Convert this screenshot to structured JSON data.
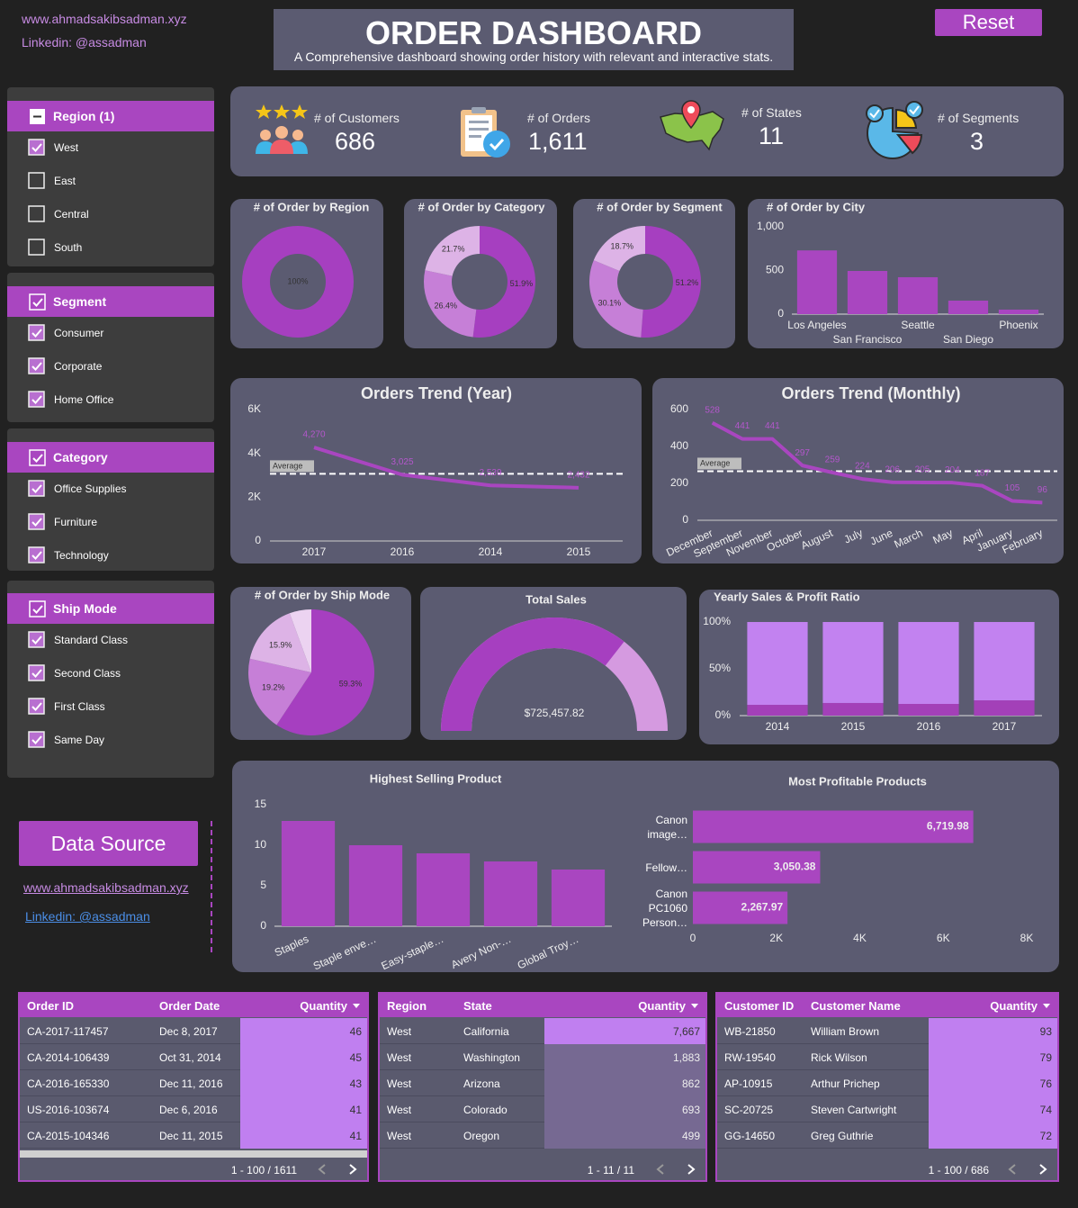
{
  "header": {
    "website": "www.ahmadsakibsadman.xyz",
    "linkedin": "Linkedin: @assadman",
    "title": "ORDER DASHBOARD",
    "subtitle": "A Comprehensive dashboard showing order history with relevant and interactive stats.",
    "reset": "Reset"
  },
  "filters": [
    {
      "title": "Region (1)",
      "state": "partial",
      "options": [
        {
          "label": "West",
          "checked": true
        },
        {
          "label": "East",
          "checked": false
        },
        {
          "label": "Central",
          "checked": false
        },
        {
          "label": "South",
          "checked": false
        }
      ]
    },
    {
      "title": "Segment",
      "state": "checked",
      "options": [
        {
          "label": "Consumer",
          "checked": true
        },
        {
          "label": "Corporate",
          "checked": true
        },
        {
          "label": "Home Office",
          "checked": true
        }
      ]
    },
    {
      "title": "Category",
      "state": "checked",
      "options": [
        {
          "label": "Office Supplies",
          "checked": true
        },
        {
          "label": "Furniture",
          "checked": true
        },
        {
          "label": "Technology",
          "checked": true
        }
      ]
    },
    {
      "title": "Ship Mode",
      "state": "checked",
      "options": [
        {
          "label": "Standard Class",
          "checked": true
        },
        {
          "label": "Second Class",
          "checked": true
        },
        {
          "label": "First Class",
          "checked": true
        },
        {
          "label": "Same Day",
          "checked": true
        }
      ]
    }
  ],
  "data_source": {
    "button": "Data Source",
    "website": "www.ahmadsakibsadman.xyz",
    "linkedin": "Linkedin: @assadman"
  },
  "kpis": [
    {
      "label": "# of Customers",
      "value": "686"
    },
    {
      "label": "# of Orders",
      "value": "1,611"
    },
    {
      "label": "# of States",
      "value": "11"
    },
    {
      "label": "# of Segments",
      "value": "3"
    }
  ],
  "chart_data": [
    {
      "type": "donut",
      "title": "# of Order by Region",
      "values": [
        100
      ],
      "value_labels": [
        "100%"
      ],
      "colors": [
        "#a63fc0"
      ]
    },
    {
      "type": "donut",
      "title": "# of Order by Category",
      "values": [
        51.9,
        26.4,
        21.7
      ],
      "value_labels": [
        "51.9%",
        "26.4%",
        "21.7%"
      ],
      "colors": [
        "#a63fc0",
        "#c67fd7",
        "#ddb3e6"
      ]
    },
    {
      "type": "donut",
      "title": "# of Order by Segment",
      "values": [
        51.2,
        30.1,
        18.7
      ],
      "value_labels": [
        "51.2%",
        "30.1%",
        "18.7%"
      ],
      "colors": [
        "#a63fc0",
        "#c67fd7",
        "#ddb3e6"
      ]
    },
    {
      "type": "bar",
      "title": "# of Order by City",
      "categories": [
        "Los Angeles",
        "San Francisco",
        "Seattle",
        "San Diego",
        "Phoenix"
      ],
      "values": [
        730,
        495,
        423,
        155,
        52
      ],
      "color": "#a946c0",
      "ylim": [
        0,
        1000
      ],
      "yticks": [
        0,
        500,
        {
          "value": 1000,
          "label": "1,000"
        }
      ]
    },
    {
      "type": "line",
      "title": "Orders Trend (Year)",
      "categories": [
        "2017",
        "2016",
        "2014",
        "2015"
      ],
      "values": [
        4270,
        3025,
        2539,
        2432
      ],
      "value_labels": [
        "4,270",
        "3,025",
        "2,539",
        "2,432"
      ],
      "average": 3066.5,
      "average_label": "Average",
      "color": "#a946c0",
      "ylim": [
        0,
        6000
      ],
      "yticks": [
        0,
        {
          "value": 2000,
          "label": "2K"
        },
        {
          "value": 4000,
          "label": "4K"
        },
        {
          "value": 6000,
          "label": "6K"
        }
      ]
    },
    {
      "type": "line",
      "title": "Orders Trend (Monthly)",
      "categories": [
        "December",
        "September",
        "November",
        "October",
        "August",
        "July",
        "June",
        "March",
        "May",
        "April",
        "January",
        "February"
      ],
      "values": [
        528,
        441,
        441,
        297,
        259,
        224,
        206,
        205,
        204,
        187,
        105,
        96
      ],
      "average": 266.1,
      "average_label": "Average",
      "color": "#a946c0",
      "ylim": [
        0,
        600
      ],
      "yticks": [
        0,
        200,
        400,
        600
      ]
    },
    {
      "type": "pie",
      "title": "# of Order by Ship Mode",
      "values": [
        59.3,
        19.2,
        15.9,
        5.6
      ],
      "value_labels": [
        "59.3%",
        "19.2%",
        "15.9%",
        null
      ],
      "colors": [
        "#a63fc0",
        "#c67fd7",
        "#ddb3e6",
        "#ecd3f1"
      ]
    },
    {
      "type": "gauge",
      "title": "Total Sales",
      "value": 725457.82,
      "value_label": "$725,457.82",
      "range": [
        0,
        1020000
      ],
      "colors": [
        "#a63fc0",
        "#d59ae0"
      ]
    },
    {
      "type": "stacked_bar",
      "title": "Yearly Sales & Profit Ratio",
      "categories": [
        "2014",
        "2015",
        "2016",
        "2017"
      ],
      "series": [
        {
          "color": "#a340b8",
          "values": [
            11.5,
            13.5,
            12.5,
            16.3
          ]
        },
        {
          "color": "#c282f0",
          "values": [
            88.5,
            86.5,
            87.5,
            83.7
          ]
        }
      ],
      "ylim": [
        0,
        100
      ],
      "yticks": [
        {
          "value": 0,
          "label": "0%"
        },
        {
          "value": 50,
          "label": "50%"
        },
        {
          "value": 100,
          "label": "100%"
        }
      ]
    },
    {
      "type": "bar",
      "title": "Highest Selling Product",
      "categories": [
        "Staples",
        "Staple enve…",
        "Easy-staple…",
        "Avery Non-…",
        "Global Troy…"
      ],
      "values": [
        13,
        10,
        9,
        8,
        7
      ],
      "color": "#a946c0",
      "ylim": [
        0,
        15
      ],
      "yticks": [
        0,
        5,
        10,
        15
      ]
    },
    {
      "type": "hbar",
      "title": "Most Profitable Products",
      "categories": [
        "Canon image…",
        "Fellow…",
        "Canon PC1060 Person…"
      ],
      "values": [
        6719.98,
        3050.38,
        2267.97
      ],
      "value_labels": [
        "6,719.98",
        "3,050.38",
        "2,267.97"
      ],
      "color": "#a946c0",
      "xlim": [
        0,
        8000
      ],
      "xticks": [
        0,
        {
          "value": 2000,
          "label": "2K"
        },
        {
          "value": 4000,
          "label": "4K"
        },
        {
          "value": 6000,
          "label": "6K"
        },
        {
          "value": 8000,
          "label": "8K"
        }
      ]
    }
  ],
  "tables": [
    {
      "columns": [
        "Order ID",
        "Order Date",
        "Quantity"
      ],
      "rows": [
        [
          "CA-2017-117457",
          "Dec 8, 2017",
          "46"
        ],
        [
          "CA-2014-106439",
          "Oct 31, 2014",
          "45"
        ],
        [
          "CA-2016-165330",
          "Dec 11, 2016",
          "43"
        ],
        [
          "US-2016-103674",
          "Dec 6, 2016",
          "41"
        ],
        [
          "CA-2015-104346",
          "Dec 11, 2015",
          "41"
        ]
      ],
      "pagination": "1 - 100 / 1611"
    },
    {
      "columns": [
        "Region",
        "State",
        "Quantity"
      ],
      "rows": [
        [
          "West",
          "California",
          "7,667"
        ],
        [
          "West",
          "Washington",
          "1,883"
        ],
        [
          "West",
          "Arizona",
          "862"
        ],
        [
          "West",
          "Colorado",
          "693"
        ],
        [
          "West",
          "Oregon",
          "499"
        ]
      ],
      "pagination": "1 - 11 / 11"
    },
    {
      "columns": [
        "Customer ID",
        "Customer Name",
        "Quantity"
      ],
      "rows": [
        [
          "WB-21850",
          "William Brown",
          "93"
        ],
        [
          "RW-19540",
          "Rick Wilson",
          "79"
        ],
        [
          "AP-10915",
          "Arthur Prichep",
          "76"
        ],
        [
          "SC-20725",
          "Steven Cartwright",
          "74"
        ],
        [
          "GG-14650",
          "Greg Guthrie",
          "72"
        ]
      ],
      "pagination": "1 - 100 / 686"
    }
  ]
}
